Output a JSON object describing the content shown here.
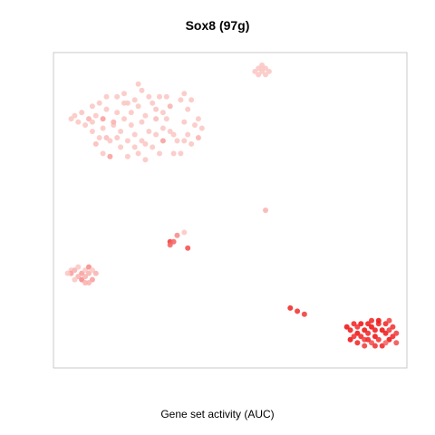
{
  "chart_data": {
    "type": "scatter",
    "title": "Sox8 (97g)",
    "xlabel": "Gene set activity (AUC)",
    "ylabel": "",
    "grid": false,
    "legend": "none",
    "xlim": [
      0,
      100
    ],
    "ylim": [
      0,
      100
    ],
    "color_scale": {
      "low": "#fcdcd8",
      "high": "#f01a1a"
    },
    "points": [
      {
        "x": 5,
        "y": 79,
        "v": 0.1
      },
      {
        "x": 6,
        "y": 80,
        "v": 0.1
      },
      {
        "x": 7,
        "y": 78,
        "v": 0.1
      },
      {
        "x": 8,
        "y": 81,
        "v": 0.12
      },
      {
        "x": 9,
        "y": 77,
        "v": 0.1
      },
      {
        "x": 10,
        "y": 79,
        "v": 0.2
      },
      {
        "x": 11,
        "y": 83,
        "v": 0.1
      },
      {
        "x": 11,
        "y": 78,
        "v": 0.1
      },
      {
        "x": 12,
        "y": 80,
        "v": 0.1
      },
      {
        "x": 11,
        "y": 75,
        "v": 0.1
      },
      {
        "x": 12,
        "y": 71,
        "v": 0.15
      },
      {
        "x": 13,
        "y": 73,
        "v": 0.1
      },
      {
        "x": 13,
        "y": 84,
        "v": 0.1
      },
      {
        "x": 14,
        "y": 79,
        "v": 0.3
      },
      {
        "x": 14,
        "y": 76,
        "v": 0.1
      },
      {
        "x": 15,
        "y": 82,
        "v": 0.1
      },
      {
        "x": 15,
        "y": 73,
        "v": 0.15
      },
      {
        "x": 14,
        "y": 68,
        "v": 0.1
      },
      {
        "x": 16,
        "y": 72,
        "v": 0.1
      },
      {
        "x": 16,
        "y": 67,
        "v": 0.3
      },
      {
        "x": 17,
        "y": 77,
        "v": 0.1
      },
      {
        "x": 18,
        "y": 86,
        "v": 0.1
      },
      {
        "x": 18,
        "y": 81,
        "v": 0.1
      },
      {
        "x": 19,
        "y": 75,
        "v": 0.1
      },
      {
        "x": 19,
        "y": 70,
        "v": 0.1
      },
      {
        "x": 20,
        "y": 87,
        "v": 0.1
      },
      {
        "x": 20,
        "y": 79,
        "v": 0.1
      },
      {
        "x": 21,
        "y": 84,
        "v": 0.1
      },
      {
        "x": 21,
        "y": 72,
        "v": 0.1
      },
      {
        "x": 22,
        "y": 77,
        "v": 0.1
      },
      {
        "x": 21,
        "y": 67,
        "v": 0.1
      },
      {
        "x": 23,
        "y": 85,
        "v": 0.1
      },
      {
        "x": 22,
        "y": 81,
        "v": 0.1
      },
      {
        "x": 23,
        "y": 74,
        "v": 0.1
      },
      {
        "x": 24,
        "y": 68,
        "v": 0.1
      },
      {
        "x": 24,
        "y": 83,
        "v": 0.1
      },
      {
        "x": 25,
        "y": 88,
        "v": 0.1
      },
      {
        "x": 25,
        "y": 78,
        "v": 0.1
      },
      {
        "x": 25,
        "y": 72,
        "v": 0.1
      },
      {
        "x": 26,
        "y": 80,
        "v": 0.1
      },
      {
        "x": 26,
        "y": 66,
        "v": 0.1
      },
      {
        "x": 27,
        "y": 86,
        "v": 0.1
      },
      {
        "x": 27,
        "y": 75,
        "v": 0.1
      },
      {
        "x": 26,
        "y": 71,
        "v": 0.1
      },
      {
        "x": 28,
        "y": 84,
        "v": 0.1
      },
      {
        "x": 28,
        "y": 70,
        "v": 0.1
      },
      {
        "x": 29,
        "y": 79,
        "v": 0.15
      },
      {
        "x": 29,
        "y": 74,
        "v": 0.1
      },
      {
        "x": 30,
        "y": 86,
        "v": 0.1
      },
      {
        "x": 30,
        "y": 68,
        "v": 0.1
      },
      {
        "x": 31,
        "y": 76,
        "v": 0.1
      },
      {
        "x": 31,
        "y": 72,
        "v": 0.3
      },
      {
        "x": 32,
        "y": 86,
        "v": 0.1
      },
      {
        "x": 32,
        "y": 79,
        "v": 0.1
      },
      {
        "x": 33,
        "y": 83,
        "v": 0.2
      },
      {
        "x": 33,
        "y": 75,
        "v": 0.1
      },
      {
        "x": 34,
        "y": 68,
        "v": 0.1
      },
      {
        "x": 35,
        "y": 72,
        "v": 0.1
      },
      {
        "x": 36,
        "y": 85,
        "v": 0.1
      },
      {
        "x": 37,
        "y": 78,
        "v": 0.1
      },
      {
        "x": 37,
        "y": 87,
        "v": 0.1
      },
      {
        "x": 38,
        "y": 74,
        "v": 0.1
      },
      {
        "x": 38,
        "y": 82,
        "v": 0.1
      },
      {
        "x": 36,
        "y": 68,
        "v": 0.1
      },
      {
        "x": 39,
        "y": 71,
        "v": 0.1
      },
      {
        "x": 40,
        "y": 77,
        "v": 0.1
      },
      {
        "x": 39,
        "y": 85,
        "v": 0.1
      },
      {
        "x": 41,
        "y": 73,
        "v": 0.2
      },
      {
        "x": 41,
        "y": 79,
        "v": 0.1
      },
      {
        "x": 42,
        "y": 76,
        "v": 0.1
      },
      {
        "x": 24,
        "y": 90,
        "v": 0.1
      },
      {
        "x": 20,
        "y": 84,
        "v": 0.1
      },
      {
        "x": 17,
        "y": 78,
        "v": 0.2
      },
      {
        "x": 34,
        "y": 74,
        "v": 0.1
      },
      {
        "x": 37,
        "y": 72,
        "v": 0.1
      },
      {
        "x": 29,
        "y": 82,
        "v": 0.12
      },
      {
        "x": 31,
        "y": 81,
        "v": 0.1
      },
      {
        "x": 23,
        "y": 70,
        "v": 0.1
      },
      {
        "x": 18,
        "y": 73,
        "v": 0.12
      },
      {
        "x": 15,
        "y": 86,
        "v": 0.1
      },
      {
        "x": 57,
        "y": 94,
        "v": 0.1
      },
      {
        "x": 58,
        "y": 95,
        "v": 0.1
      },
      {
        "x": 59,
        "y": 94,
        "v": 0.1
      },
      {
        "x": 60,
        "y": 95,
        "v": 0.1
      },
      {
        "x": 61,
        "y": 94,
        "v": 0.1
      },
      {
        "x": 59,
        "y": 96,
        "v": 0.1
      },
      {
        "x": 60,
        "y": 93,
        "v": 0.1
      },
      {
        "x": 58,
        "y": 93,
        "v": 0.1
      },
      {
        "x": 59,
        "y": 95,
        "v": 0.1
      },
      {
        "x": 60,
        "y": 50,
        "v": 0.2
      },
      {
        "x": 38,
        "y": 38,
        "v": 0.7
      },
      {
        "x": 33,
        "y": 40,
        "v": 0.8
      },
      {
        "x": 34,
        "y": 40,
        "v": 0.6
      },
      {
        "x": 33,
        "y": 39,
        "v": 0.6
      },
      {
        "x": 35,
        "y": 42,
        "v": 0.4
      },
      {
        "x": 37,
        "y": 43,
        "v": 0.1
      },
      {
        "x": 5,
        "y": 31,
        "v": 0.1
      },
      {
        "x": 5,
        "y": 30,
        "v": 0.3
      },
      {
        "x": 6,
        "y": 31,
        "v": 0.2
      },
      {
        "x": 7,
        "y": 32,
        "v": 0.1
      },
      {
        "x": 7,
        "y": 29,
        "v": 0.2
      },
      {
        "x": 8,
        "y": 30,
        "v": 0.3
      },
      {
        "x": 8,
        "y": 28,
        "v": 0.4
      },
      {
        "x": 9,
        "y": 29,
        "v": 0.2
      },
      {
        "x": 9,
        "y": 31,
        "v": 0.1
      },
      {
        "x": 10,
        "y": 32,
        "v": 0.4
      },
      {
        "x": 10,
        "y": 30,
        "v": 0.2
      },
      {
        "x": 11,
        "y": 28,
        "v": 0.3
      },
      {
        "x": 11,
        "y": 31,
        "v": 0.1
      },
      {
        "x": 12,
        "y": 30,
        "v": 0.2
      },
      {
        "x": 9,
        "y": 27,
        "v": 0.2
      },
      {
        "x": 6,
        "y": 28,
        "v": 0.1
      },
      {
        "x": 4,
        "y": 30,
        "v": 0.1
      },
      {
        "x": 10,
        "y": 27,
        "v": 0.2
      },
      {
        "x": 67,
        "y": 19,
        "v": 0.9
      },
      {
        "x": 69,
        "y": 18,
        "v": 0.85
      },
      {
        "x": 71,
        "y": 17,
        "v": 0.8
      },
      {
        "x": 83,
        "y": 13,
        "v": 1.0
      },
      {
        "x": 84,
        "y": 12,
        "v": 0.95
      },
      {
        "x": 85,
        "y": 14,
        "v": 0.9
      },
      {
        "x": 86,
        "y": 11,
        "v": 1.0
      },
      {
        "x": 86,
        "y": 13,
        "v": 0.85
      },
      {
        "x": 87,
        "y": 14,
        "v": 1.0
      },
      {
        "x": 87,
        "y": 10,
        "v": 0.9
      },
      {
        "x": 88,
        "y": 12,
        "v": 1.0
      },
      {
        "x": 88,
        "y": 9,
        "v": 0.8
      },
      {
        "x": 89,
        "y": 14,
        "v": 0.95
      },
      {
        "x": 89,
        "y": 11,
        "v": 0.9
      },
      {
        "x": 90,
        "y": 13,
        "v": 1.0
      },
      {
        "x": 90,
        "y": 8,
        "v": 0.7
      },
      {
        "x": 91,
        "y": 12,
        "v": 0.95
      },
      {
        "x": 91,
        "y": 10,
        "v": 1.0
      },
      {
        "x": 92,
        "y": 14,
        "v": 0.9
      },
      {
        "x": 92,
        "y": 9,
        "v": 0.85
      },
      {
        "x": 93,
        "y": 12,
        "v": 1.0
      },
      {
        "x": 93,
        "y": 7,
        "v": 0.9
      },
      {
        "x": 94,
        "y": 11,
        "v": 0.95
      },
      {
        "x": 94,
        "y": 14,
        "v": 0.9
      },
      {
        "x": 95,
        "y": 9,
        "v": 1.0
      },
      {
        "x": 95,
        "y": 12,
        "v": 0.8
      },
      {
        "x": 96,
        "y": 13,
        "v": 0.85
      },
      {
        "x": 96,
        "y": 10,
        "v": 0.9
      },
      {
        "x": 97,
        "y": 11,
        "v": 0.8
      },
      {
        "x": 84,
        "y": 9,
        "v": 1.0
      },
      {
        "x": 85,
        "y": 10,
        "v": 0.85
      },
      {
        "x": 86,
        "y": 8,
        "v": 0.9
      },
      {
        "x": 88,
        "y": 7,
        "v": 0.8
      },
      {
        "x": 90,
        "y": 15,
        "v": 0.9
      },
      {
        "x": 92,
        "y": 15,
        "v": 1.0
      },
      {
        "x": 94,
        "y": 8,
        "v": 0.6
      },
      {
        "x": 97,
        "y": 8,
        "v": 0.7
      },
      {
        "x": 95,
        "y": 15,
        "v": 0.75
      },
      {
        "x": 91,
        "y": 7,
        "v": 0.85
      },
      {
        "x": 89,
        "y": 9,
        "v": 0.9
      }
    ]
  }
}
